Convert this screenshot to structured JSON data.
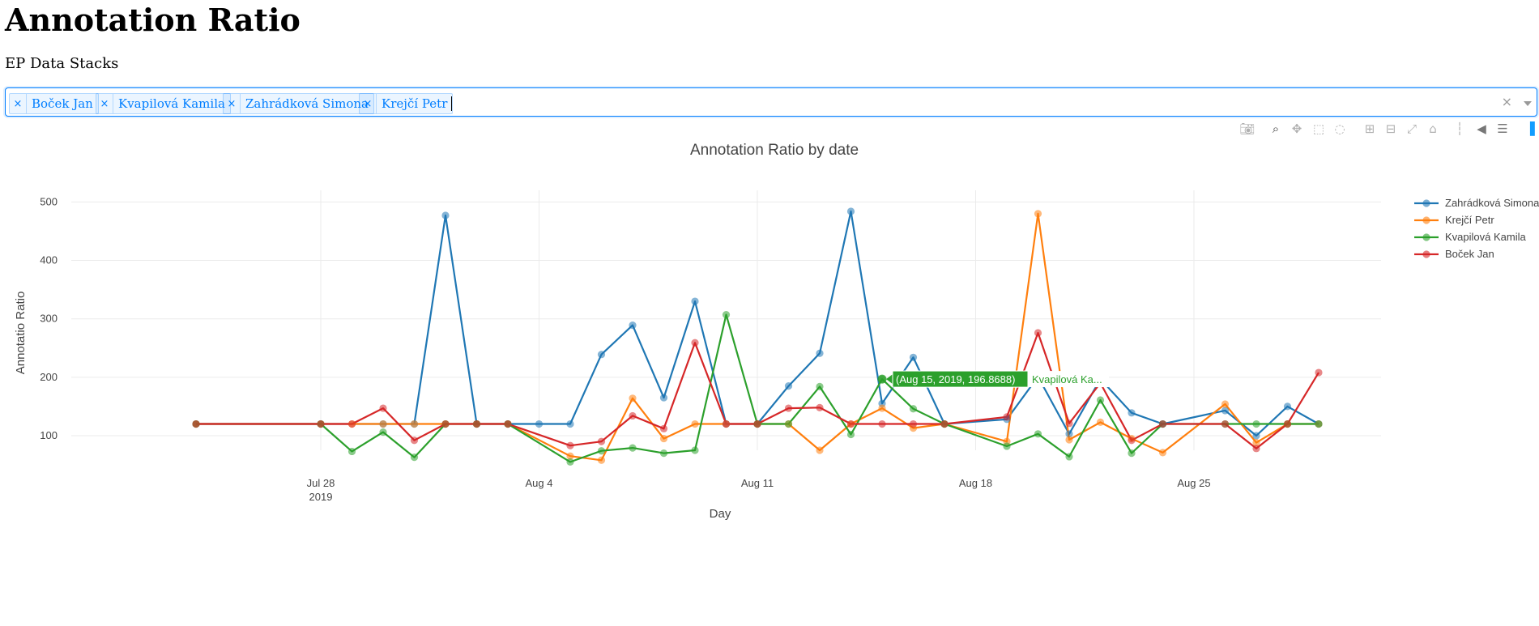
{
  "page": {
    "heading": "Annotation Ratio",
    "subheading": "EP Data Stacks"
  },
  "filter": {
    "tags": [
      {
        "label": "Boček Jan"
      },
      {
        "label": "Kvapilová Kamila"
      },
      {
        "label": "Zahrádková Simona"
      },
      {
        "label": "Krejčí Petr"
      }
    ],
    "clear_icon": "×",
    "remove_icon": "×"
  },
  "modebar": {
    "icons": [
      "camera-icon",
      "zoom-icon",
      "pan-icon",
      "box-select-icon",
      "lasso-icon",
      "zoom-in-icon",
      "zoom-out-icon",
      "autoscale-icon",
      "reset-axes-icon",
      "spike-lines-icon",
      "hover-closest-icon",
      "hover-compare-icon",
      "plotly-logo-icon"
    ]
  },
  "chart_data": {
    "type": "line",
    "title": "Annotation Ratio by date",
    "xlabel": "Day",
    "ylabel": "Annotatio Ratio",
    "x_range": [
      "2019-07-20",
      "2019-08-31"
    ],
    "ylim": [
      75,
      520
    ],
    "x_ticks": [
      {
        "date": "2019-07-28",
        "label": "Jul 28",
        "sublabel": "2019"
      },
      {
        "date": "2019-08-04",
        "label": "Aug 4",
        "sublabel": ""
      },
      {
        "date": "2019-08-11",
        "label": "Aug 11",
        "sublabel": ""
      },
      {
        "date": "2019-08-18",
        "label": "Aug 18",
        "sublabel": ""
      },
      {
        "date": "2019-08-25",
        "label": "Aug 25",
        "sublabel": ""
      }
    ],
    "y_ticks": [
      100,
      200,
      300,
      400,
      500
    ],
    "grid": true,
    "legend_position": "right",
    "series": [
      {
        "name": "Zahrádková Simona",
        "color": "#1f77b4",
        "points": [
          [
            "2019-07-24",
            120
          ],
          [
            "2019-07-28",
            120
          ],
          [
            "2019-07-30",
            120
          ],
          [
            "2019-07-31",
            120
          ],
          [
            "2019-08-01",
            477
          ],
          [
            "2019-08-02",
            120
          ],
          [
            "2019-08-03",
            120
          ],
          [
            "2019-08-04",
            120
          ],
          [
            "2019-08-05",
            120
          ],
          [
            "2019-08-06",
            239
          ],
          [
            "2019-08-07",
            289
          ],
          [
            "2019-08-08",
            165
          ],
          [
            "2019-08-09",
            330
          ],
          [
            "2019-08-10",
            120
          ],
          [
            "2019-08-11",
            120
          ],
          [
            "2019-08-12",
            185
          ],
          [
            "2019-08-13",
            241
          ],
          [
            "2019-08-14",
            484
          ],
          [
            "2019-08-15",
            155
          ],
          [
            "2019-08-16",
            234
          ],
          [
            "2019-08-17",
            120
          ],
          [
            "2019-08-19",
            128
          ],
          [
            "2019-08-20",
            201
          ],
          [
            "2019-08-21",
            103
          ],
          [
            "2019-08-22",
            197
          ],
          [
            "2019-08-23",
            139
          ],
          [
            "2019-08-24",
            120
          ],
          [
            "2019-08-26",
            143
          ],
          [
            "2019-08-27",
            100
          ],
          [
            "2019-08-28",
            150
          ],
          [
            "2019-08-29",
            120
          ]
        ]
      },
      {
        "name": "Krejčí Petr",
        "color": "#ff7f0e",
        "points": [
          [
            "2019-07-24",
            120
          ],
          [
            "2019-07-28",
            120
          ],
          [
            "2019-07-29",
            120
          ],
          [
            "2019-07-30",
            120
          ],
          [
            "2019-07-31",
            120
          ],
          [
            "2019-08-01",
            120
          ],
          [
            "2019-08-02",
            120
          ],
          [
            "2019-08-03",
            120
          ],
          [
            "2019-08-05",
            65
          ],
          [
            "2019-08-06",
            58
          ],
          [
            "2019-08-07",
            164
          ],
          [
            "2019-08-08",
            95
          ],
          [
            "2019-08-09",
            120
          ],
          [
            "2019-08-10",
            120
          ],
          [
            "2019-08-11",
            120
          ],
          [
            "2019-08-12",
            120
          ],
          [
            "2019-08-13",
            75
          ],
          [
            "2019-08-14",
            120
          ],
          [
            "2019-08-15",
            147
          ],
          [
            "2019-08-16",
            113
          ],
          [
            "2019-08-17",
            120
          ],
          [
            "2019-08-19",
            90
          ],
          [
            "2019-08-20",
            480
          ],
          [
            "2019-08-21",
            93
          ],
          [
            "2019-08-22",
            123
          ],
          [
            "2019-08-23",
            95
          ],
          [
            "2019-08-24",
            71
          ],
          [
            "2019-08-26",
            154
          ],
          [
            "2019-08-27",
            88
          ],
          [
            "2019-08-28",
            120
          ],
          [
            "2019-08-29",
            120
          ]
        ]
      },
      {
        "name": "Kvapilová Kamila",
        "color": "#2ca02c",
        "points": [
          [
            "2019-07-24",
            120
          ],
          [
            "2019-07-28",
            120
          ],
          [
            "2019-07-29",
            73
          ],
          [
            "2019-07-30",
            106
          ],
          [
            "2019-07-31",
            63
          ],
          [
            "2019-08-01",
            120
          ],
          [
            "2019-08-02",
            120
          ],
          [
            "2019-08-03",
            120
          ],
          [
            "2019-08-05",
            55
          ],
          [
            "2019-08-06",
            74
          ],
          [
            "2019-08-07",
            79
          ],
          [
            "2019-08-08",
            70
          ],
          [
            "2019-08-09",
            75
          ],
          [
            "2019-08-10",
            307
          ],
          [
            "2019-08-11",
            120
          ],
          [
            "2019-08-12",
            120
          ],
          [
            "2019-08-13",
            184
          ],
          [
            "2019-08-14",
            102
          ],
          [
            "2019-08-15",
            196.8688
          ],
          [
            "2019-08-16",
            146
          ],
          [
            "2019-08-17",
            120
          ],
          [
            "2019-08-19",
            82
          ],
          [
            "2019-08-20",
            103
          ],
          [
            "2019-08-21",
            64
          ],
          [
            "2019-08-22",
            161
          ],
          [
            "2019-08-23",
            70
          ],
          [
            "2019-08-24",
            120
          ],
          [
            "2019-08-26",
            120
          ],
          [
            "2019-08-27",
            120
          ],
          [
            "2019-08-28",
            120
          ],
          [
            "2019-08-29",
            120
          ]
        ]
      },
      {
        "name": "Boček Jan",
        "color": "#d62728",
        "points": [
          [
            "2019-07-24",
            120
          ],
          [
            "2019-07-28",
            120
          ],
          [
            "2019-07-29",
            120
          ],
          [
            "2019-07-30",
            147
          ],
          [
            "2019-07-31",
            92
          ],
          [
            "2019-08-01",
            120
          ],
          [
            "2019-08-02",
            120
          ],
          [
            "2019-08-03",
            120
          ],
          [
            "2019-08-05",
            83
          ],
          [
            "2019-08-06",
            90
          ],
          [
            "2019-08-07",
            134
          ],
          [
            "2019-08-08",
            112
          ],
          [
            "2019-08-09",
            259
          ],
          [
            "2019-08-10",
            120
          ],
          [
            "2019-08-11",
            120
          ],
          [
            "2019-08-12",
            147
          ],
          [
            "2019-08-13",
            148
          ],
          [
            "2019-08-14",
            120
          ],
          [
            "2019-08-15",
            120
          ],
          [
            "2019-08-16",
            120
          ],
          [
            "2019-08-17",
            120
          ],
          [
            "2019-08-19",
            132
          ],
          [
            "2019-08-20",
            276
          ],
          [
            "2019-08-21",
            121
          ],
          [
            "2019-08-22",
            190
          ],
          [
            "2019-08-23",
            92
          ],
          [
            "2019-08-24",
            120
          ],
          [
            "2019-08-26",
            120
          ],
          [
            "2019-08-27",
            78
          ],
          [
            "2019-08-28",
            120
          ],
          [
            "2019-08-29",
            208
          ]
        ]
      }
    ],
    "hover": {
      "series_index": 2,
      "date": "2019-08-15",
      "y": 196.8688,
      "label": "(Aug 15, 2019, 196.8688)",
      "series_label": "Kvapilová Ka..."
    }
  }
}
